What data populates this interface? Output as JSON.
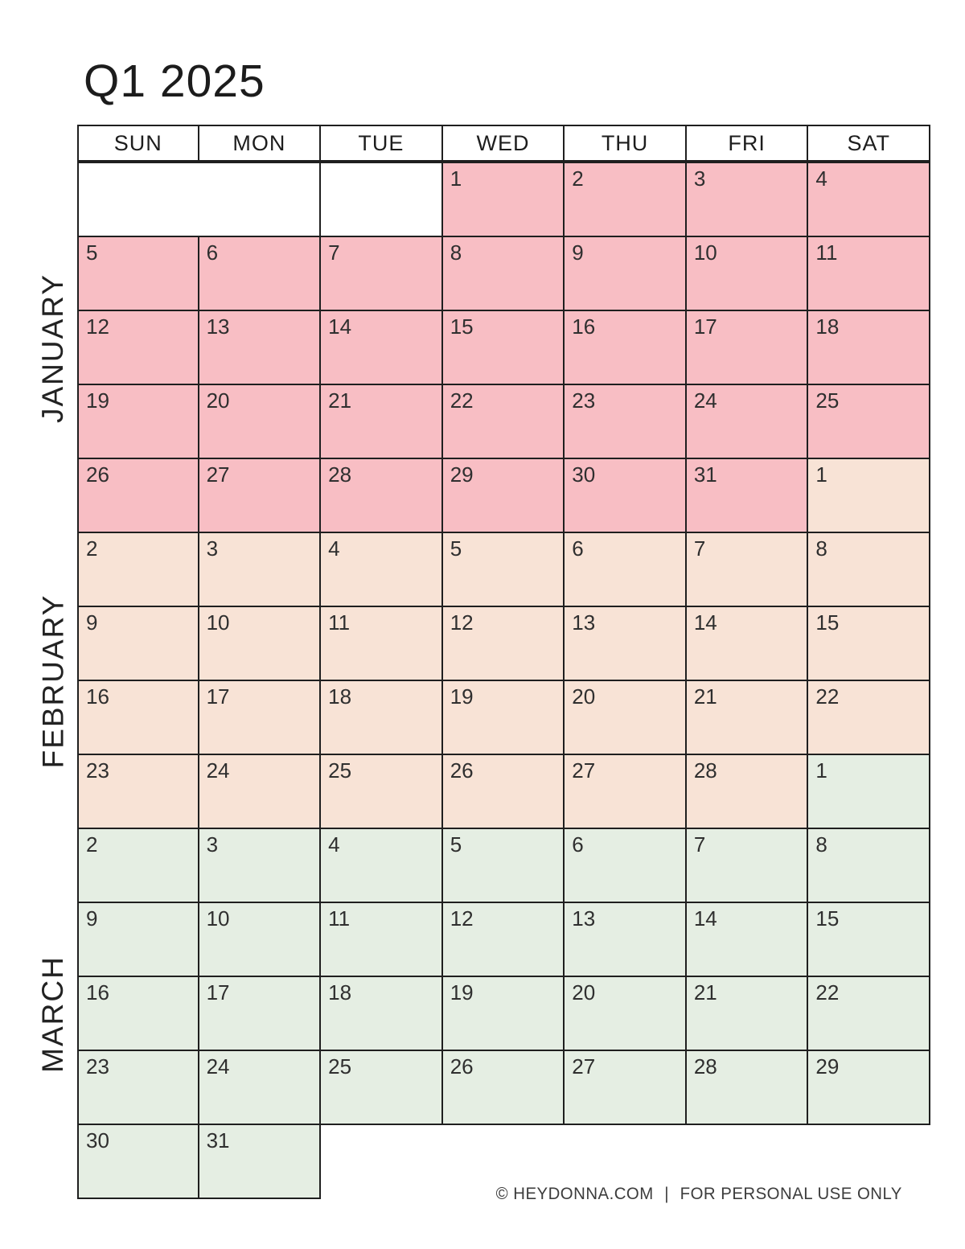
{
  "title": "Q1 2025",
  "day_headers": [
    "SUN",
    "MON",
    "TUE",
    "WED",
    "THU",
    "FRI",
    "SAT"
  ],
  "months": [
    {
      "key": "january",
      "label": "JANUARY"
    },
    {
      "key": "february",
      "label": "FEBRUARY"
    },
    {
      "key": "march",
      "label": "MARCH"
    }
  ],
  "colors": {
    "january": "#f8bec4",
    "february": "#f8e3d6",
    "march": "#e5eee3",
    "border": "#1f1f1f",
    "day_number": "#2f2f2f"
  },
  "weeks": [
    {
      "cells": [
        {
          "blank": true,
          "span": 2
        },
        {
          "blank": true
        },
        {
          "d": 1,
          "m": "january"
        },
        {
          "d": 2,
          "m": "january"
        },
        {
          "d": 3,
          "m": "january"
        },
        {
          "d": 4,
          "m": "january"
        }
      ]
    },
    {
      "cells": [
        {
          "d": 5,
          "m": "january"
        },
        {
          "d": 6,
          "m": "january"
        },
        {
          "d": 7,
          "m": "january"
        },
        {
          "d": 8,
          "m": "january"
        },
        {
          "d": 9,
          "m": "january"
        },
        {
          "d": 10,
          "m": "january"
        },
        {
          "d": 11,
          "m": "january"
        }
      ]
    },
    {
      "cells": [
        {
          "d": 12,
          "m": "january"
        },
        {
          "d": 13,
          "m": "january"
        },
        {
          "d": 14,
          "m": "january"
        },
        {
          "d": 15,
          "m": "january"
        },
        {
          "d": 16,
          "m": "january"
        },
        {
          "d": 17,
          "m": "january"
        },
        {
          "d": 18,
          "m": "january"
        }
      ]
    },
    {
      "cells": [
        {
          "d": 19,
          "m": "january"
        },
        {
          "d": 20,
          "m": "january"
        },
        {
          "d": 21,
          "m": "january"
        },
        {
          "d": 22,
          "m": "january"
        },
        {
          "d": 23,
          "m": "january"
        },
        {
          "d": 24,
          "m": "january"
        },
        {
          "d": 25,
          "m": "january"
        }
      ]
    },
    {
      "cells": [
        {
          "d": 26,
          "m": "january"
        },
        {
          "d": 27,
          "m": "january"
        },
        {
          "d": 28,
          "m": "january"
        },
        {
          "d": 29,
          "m": "january"
        },
        {
          "d": 30,
          "m": "january"
        },
        {
          "d": 31,
          "m": "january"
        },
        {
          "d": 1,
          "m": "february"
        }
      ]
    },
    {
      "cells": [
        {
          "d": 2,
          "m": "february"
        },
        {
          "d": 3,
          "m": "february"
        },
        {
          "d": 4,
          "m": "february"
        },
        {
          "d": 5,
          "m": "february"
        },
        {
          "d": 6,
          "m": "february"
        },
        {
          "d": 7,
          "m": "february"
        },
        {
          "d": 8,
          "m": "february"
        }
      ]
    },
    {
      "cells": [
        {
          "d": 9,
          "m": "february"
        },
        {
          "d": 10,
          "m": "february"
        },
        {
          "d": 11,
          "m": "february"
        },
        {
          "d": 12,
          "m": "february"
        },
        {
          "d": 13,
          "m": "february"
        },
        {
          "d": 14,
          "m": "february"
        },
        {
          "d": 15,
          "m": "february"
        }
      ]
    },
    {
      "cells": [
        {
          "d": 16,
          "m": "february"
        },
        {
          "d": 17,
          "m": "february"
        },
        {
          "d": 18,
          "m": "february"
        },
        {
          "d": 19,
          "m": "february"
        },
        {
          "d": 20,
          "m": "february"
        },
        {
          "d": 21,
          "m": "february"
        },
        {
          "d": 22,
          "m": "february"
        }
      ]
    },
    {
      "cells": [
        {
          "d": 23,
          "m": "february"
        },
        {
          "d": 24,
          "m": "february"
        },
        {
          "d": 25,
          "m": "february"
        },
        {
          "d": 26,
          "m": "february"
        },
        {
          "d": 27,
          "m": "february"
        },
        {
          "d": 28,
          "m": "february"
        },
        {
          "d": 1,
          "m": "march"
        }
      ]
    },
    {
      "cells": [
        {
          "d": 2,
          "m": "march"
        },
        {
          "d": 3,
          "m": "march"
        },
        {
          "d": 4,
          "m": "march"
        },
        {
          "d": 5,
          "m": "march"
        },
        {
          "d": 6,
          "m": "march"
        },
        {
          "d": 7,
          "m": "march"
        },
        {
          "d": 8,
          "m": "march"
        }
      ]
    },
    {
      "cells": [
        {
          "d": 9,
          "m": "march"
        },
        {
          "d": 10,
          "m": "march"
        },
        {
          "d": 11,
          "m": "march"
        },
        {
          "d": 12,
          "m": "march"
        },
        {
          "d": 13,
          "m": "march"
        },
        {
          "d": 14,
          "m": "march"
        },
        {
          "d": 15,
          "m": "march"
        }
      ]
    },
    {
      "cells": [
        {
          "d": 16,
          "m": "march"
        },
        {
          "d": 17,
          "m": "march"
        },
        {
          "d": 18,
          "m": "march"
        },
        {
          "d": 19,
          "m": "march"
        },
        {
          "d": 20,
          "m": "march"
        },
        {
          "d": 21,
          "m": "march"
        },
        {
          "d": 22,
          "m": "march"
        }
      ]
    },
    {
      "cells": [
        {
          "d": 23,
          "m": "march"
        },
        {
          "d": 24,
          "m": "march"
        },
        {
          "d": 25,
          "m": "march"
        },
        {
          "d": 26,
          "m": "march"
        },
        {
          "d": 27,
          "m": "march"
        },
        {
          "d": 28,
          "m": "march"
        },
        {
          "d": 29,
          "m": "march"
        }
      ]
    },
    {
      "cells": [
        {
          "d": 30,
          "m": "march"
        },
        {
          "d": 31,
          "m": "march"
        }
      ]
    }
  ],
  "footer": {
    "copyright": "© HEYDONNA.COM",
    "separator": "|",
    "notice": "FOR PERSONAL USE ONLY"
  }
}
